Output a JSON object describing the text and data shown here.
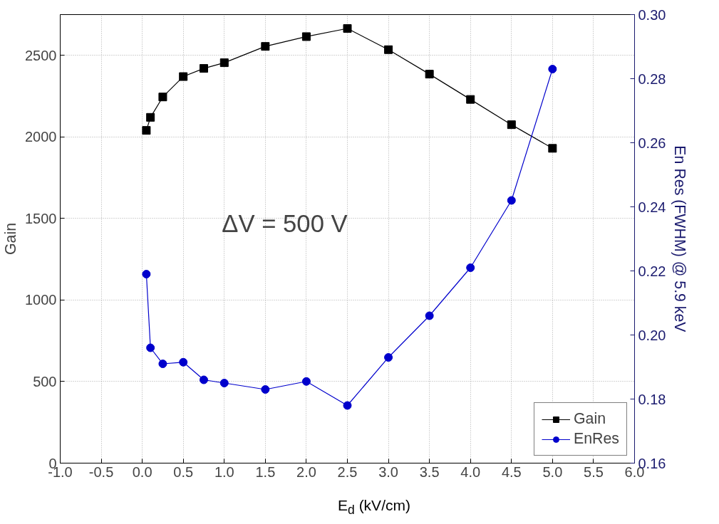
{
  "chart_data": {
    "type": "line",
    "xlabel": "E$_{d}$ (kV/cm)",
    "ylabel": "Gain",
    "y2label": "En Res (FWHM) @ 5.9 keV",
    "x": [
      0.05,
      0.1,
      0.25,
      0.5,
      0.75,
      1.0,
      1.5,
      2.0,
      2.5,
      3.0,
      3.5,
      4.0,
      4.5,
      5.0
    ],
    "series": [
      {
        "name": "Gain",
        "color": "#000000",
        "marker": "square",
        "values": [
          2040,
          2120,
          2245,
          2370,
          2420,
          2455,
          2555,
          2615,
          2665,
          2535,
          2385,
          2230,
          2075,
          1930
        ]
      },
      {
        "name": "EnRes",
        "color": "#0000cc",
        "marker": "circle",
        "axis": "y2",
        "values": [
          0.219,
          0.196,
          0.191,
          0.1915,
          0.186,
          0.185,
          0.183,
          0.1855,
          0.178,
          0.193,
          0.206,
          0.221,
          0.242,
          0.283
        ]
      }
    ],
    "xlim": [
      -1.0,
      6.0
    ],
    "xticks": [
      {
        "value": -1,
        "label": "-1.0"
      },
      -0.5,
      {
        "value": 0,
        "label": "0.0"
      },
      0.5,
      {
        "value": 1,
        "label": "1.0"
      },
      1.5,
      {
        "value": 2,
        "label": "2.0"
      },
      2.5,
      {
        "value": 3,
        "label": "3.0"
      },
      3.5,
      {
        "value": 4,
        "label": "4.0"
      },
      4.5,
      {
        "value": 5,
        "label": "5.0"
      },
      5.5,
      {
        "value": 6,
        "label": "6.0"
      }
    ],
    "ylim": [
      0,
      2750
    ],
    "yticks": [
      0,
      500,
      1000,
      1500,
      2000,
      2500
    ],
    "y2lim": [
      0.16,
      0.3
    ],
    "y2ticks": [
      0.16,
      0.18,
      {
        "value": 0.2,
        "label": "0.20"
      },
      0.22,
      0.24,
      0.26,
      0.28,
      {
        "value": 0.3,
        "label": "0.30"
      }
    ],
    "annotations": [
      "ΔV = 500 V"
    ],
    "grid": true,
    "legend": "bottom right",
    "line_style": "solid"
  }
}
